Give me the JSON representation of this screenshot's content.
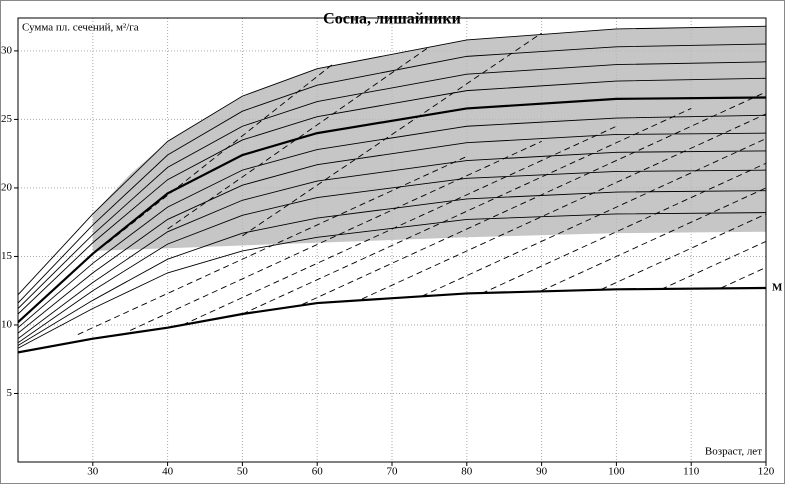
{
  "chart_data": {
    "type": "line",
    "title": "Сосна, лишайники",
    "y_label": "Сумма пл. сечений, м²/га",
    "x_label": "Возраст, лет",
    "xlim": [
      20,
      120
    ],
    "ylim": [
      0,
      32.4
    ],
    "xticks": [
      30,
      40,
      50,
      60,
      70,
      80,
      90,
      100,
      110,
      120
    ],
    "yticks": [
      5,
      10,
      15,
      20,
      25,
      30
    ],
    "grid": true,
    "x": [
      20,
      30,
      40,
      50,
      60,
      80,
      100,
      120
    ],
    "band": {
      "x": [
        30,
        35,
        40,
        50,
        60,
        80,
        100,
        120
      ],
      "lower": [
        15.4,
        15.5,
        15.6,
        15.8,
        16.0,
        16.4,
        16.7,
        16.8
      ],
      "upper": [
        18.1,
        21.0,
        23.4,
        26.7,
        28.7,
        30.8,
        31.6,
        31.8
      ],
      "color": "#b8b8b8"
    },
    "series": [
      {
        "color": "#000000",
        "values": [
          12.2,
          18.1,
          23.4,
          26.7,
          28.7,
          30.8,
          31.6,
          31.8
        ]
      },
      {
        "color": "#000000",
        "values": [
          11.6,
          17.3,
          22.4,
          25.6,
          27.5,
          29.6,
          30.3,
          30.5
        ]
      },
      {
        "color": "#000000",
        "values": [
          11.2,
          16.6,
          21.5,
          24.5,
          26.3,
          28.3,
          29.0,
          29.2
        ]
      },
      {
        "color": "#000000",
        "values": [
          10.8,
          16.0,
          20.6,
          23.5,
          25.2,
          27.1,
          27.8,
          28.0
        ]
      },
      {
        "color": "#000000",
        "style": "bold",
        "values": [
          10.2,
          15.2,
          19.6,
          22.4,
          24.0,
          25.8,
          26.5,
          26.6
        ]
      },
      {
        "color": "#000000",
        "values": [
          9.8,
          14.5,
          18.6,
          21.3,
          22.8,
          24.5,
          25.1,
          25.3
        ]
      },
      {
        "color": "#000000",
        "values": [
          9.4,
          13.8,
          17.7,
          20.2,
          21.7,
          23.3,
          23.9,
          24.0
        ]
      },
      {
        "color": "#000000",
        "values": [
          9.0,
          13.1,
          16.8,
          19.1,
          20.5,
          22.0,
          22.6,
          22.7
        ]
      },
      {
        "color": "#000000",
        "values": [
          8.7,
          12.5,
          15.9,
          18.0,
          19.3,
          20.7,
          21.2,
          21.3
        ]
      },
      {
        "color": "#000000",
        "values": [
          8.5,
          11.8,
          14.8,
          16.7,
          17.8,
          19.2,
          19.7,
          19.8
        ]
      },
      {
        "color": "#000000",
        "values": [
          8.3,
          11.2,
          13.8,
          15.4,
          16.4,
          17.7,
          18.1,
          18.2
        ]
      },
      {
        "name": "М",
        "color": "#000000",
        "style": "bold",
        "values": [
          8.0,
          9.0,
          9.8,
          10.8,
          11.6,
          12.3,
          12.6,
          12.7
        ]
      },
      {
        "color": "#000000",
        "style": "dashed",
        "x": [
          28,
          80
        ],
        "values": [
          9.3,
          22.3
        ]
      },
      {
        "color": "#000000",
        "style": "dashed",
        "x": [
          35,
          90
        ],
        "values": [
          9.6,
          23.4
        ]
      },
      {
        "color": "#000000",
        "style": "dashed",
        "x": [
          42,
          100
        ],
        "values": [
          10.0,
          24.5
        ]
      },
      {
        "color": "#000000",
        "style": "dashed",
        "x": [
          50,
          110
        ],
        "values": [
          10.8,
          25.8
        ]
      },
      {
        "color": "#000000",
        "style": "dashed",
        "x": [
          58,
          120
        ],
        "values": [
          11.5,
          27.0
        ]
      },
      {
        "color": "#000000",
        "style": "dashed",
        "x": [
          66,
          120
        ],
        "values": [
          11.9,
          25.4
        ]
      },
      {
        "color": "#000000",
        "style": "dashed",
        "x": [
          74,
          120
        ],
        "values": [
          12.1,
          23.6
        ]
      },
      {
        "color": "#000000",
        "style": "dashed",
        "x": [
          82,
          120
        ],
        "values": [
          12.3,
          21.8
        ]
      },
      {
        "color": "#000000",
        "style": "dashed",
        "x": [
          90,
          120
        ],
        "values": [
          12.5,
          20.0
        ]
      },
      {
        "color": "#000000",
        "style": "dashed",
        "x": [
          98,
          120
        ],
        "values": [
          12.6,
          18.1
        ]
      },
      {
        "color": "#000000",
        "style": "dashed",
        "x": [
          106,
          120
        ],
        "values": [
          12.6,
          16.1
        ]
      },
      {
        "color": "#000000",
        "style": "dashed",
        "x": [
          114,
          120
        ],
        "values": [
          12.7,
          14.2
        ]
      },
      {
        "color": "#000000",
        "style": "dashed",
        "x": [
          32,
          62
        ],
        "values": [
          16.0,
          29.0
        ]
      },
      {
        "color": "#000000",
        "style": "dashed",
        "x": [
          40,
          75
        ],
        "values": [
          17.0,
          30.3
        ]
      },
      {
        "color": "#000000",
        "style": "dashed",
        "x": [
          50,
          90
        ],
        "values": [
          16.5,
          31.3
        ]
      }
    ]
  }
}
